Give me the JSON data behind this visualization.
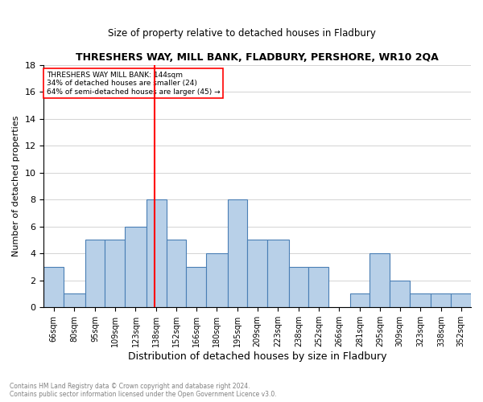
{
  "title": "THRESHERS WAY, MILL BANK, FLADBURY, PERSHORE, WR10 2QA",
  "subtitle": "Size of property relative to detached houses in Fladbury",
  "xlabel": "Distribution of detached houses by size in Fladbury",
  "ylabel": "Number of detached properties",
  "bin_labels": [
    "66sqm",
    "80sqm",
    "95sqm",
    "109sqm",
    "123sqm",
    "138sqm",
    "152sqm",
    "166sqm",
    "180sqm",
    "195sqm",
    "209sqm",
    "223sqm",
    "238sqm",
    "252sqm",
    "266sqm",
    "281sqm",
    "295sqm",
    "309sqm",
    "323sqm",
    "338sqm",
    "352sqm"
  ],
  "bin_edges": [
    66,
    80,
    95,
    109,
    123,
    138,
    152,
    166,
    180,
    195,
    209,
    223,
    238,
    252,
    266,
    281,
    295,
    309,
    323,
    338,
    352
  ],
  "counts": [
    3,
    1,
    5,
    5,
    6,
    8,
    5,
    3,
    4,
    8,
    5,
    5,
    3,
    3,
    0,
    1,
    4,
    2,
    1,
    1,
    1
  ],
  "property_value": 144,
  "bar_color": "#b8d0e8",
  "bar_edge_color": "#4a7fb5",
  "vline_color": "red",
  "annotation_box_color": "#ffffff",
  "annotation_border_color": "red",
  "annotation_text": "THRESHERS WAY MILL BANK: 144sqm\n34% of detached houses are smaller (24)\n64% of semi-detached houses are larger (45) →",
  "footnote": "Contains HM Land Registry data © Crown copyright and database right 2024.\nContains public sector information licensed under the Open Government Licence v3.0.",
  "ylim": [
    0,
    18
  ],
  "yticks": [
    0,
    2,
    4,
    6,
    8,
    10,
    12,
    14,
    16,
    18
  ]
}
